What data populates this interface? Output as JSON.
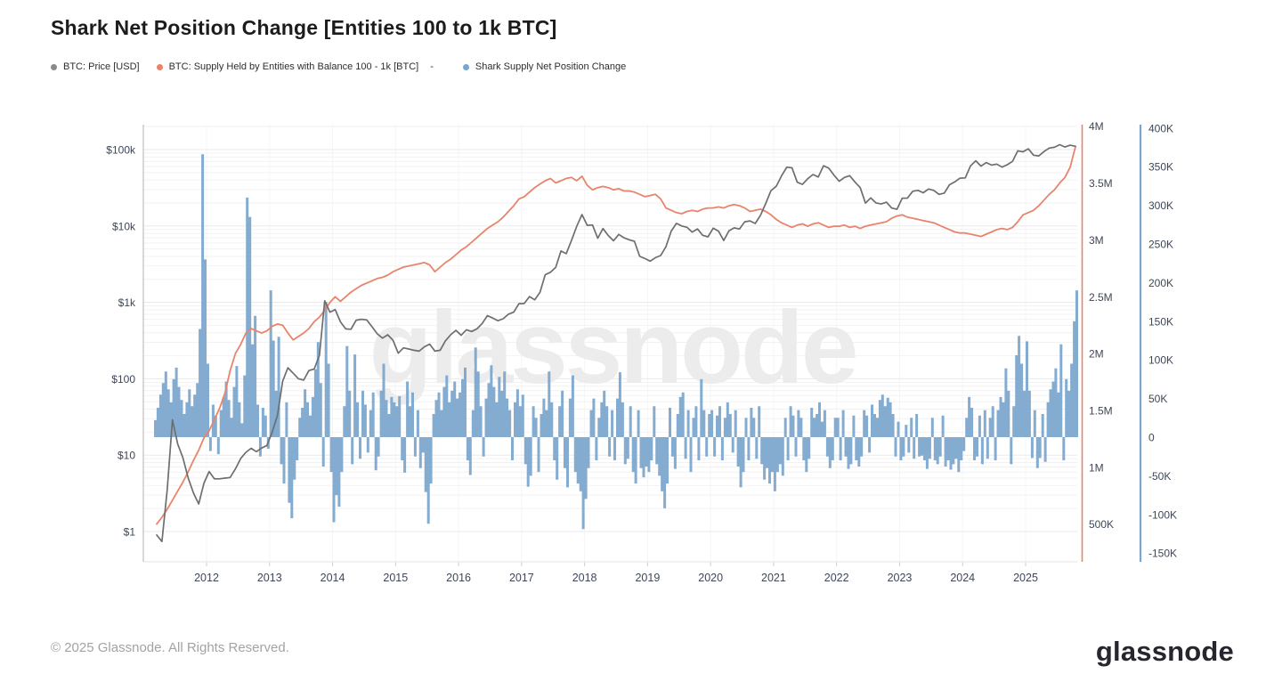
{
  "title": "Shark Net Position Change [Entities 100 to 1k BTC]",
  "legend": {
    "items": [
      {
        "label": "BTC: Price [USD]",
        "color": "#8a8a8a"
      },
      {
        "label": "BTC: Supply Held by Entities with Balance 100 - 1k [BTC]",
        "color": "#e8836b"
      },
      {
        "label": "Shark Supply Net Position Change",
        "color": "#7aa5cd"
      }
    ],
    "separator": "-"
  },
  "watermark": "glassnode",
  "footer": {
    "copyright": "© 2025 Glassnode. All Rights Reserved.",
    "logo_text": "glassnode"
  },
  "chart_data": {
    "type": "mixed",
    "title": "Shark Net Position Change [Entities 100 to 1k BTC]",
    "grid": "on",
    "x_axis": {
      "tick_labels": [
        "2012",
        "2013",
        "2014",
        "2015",
        "2016",
        "2017",
        "2018",
        "2019",
        "2020",
        "2021",
        "2022",
        "2023",
        "2024",
        "2025"
      ],
      "range": [
        2011.0,
        2025.85
      ]
    },
    "price_axis": {
      "side": "left",
      "scale": "log",
      "unit": "USD",
      "tick_labels": [
        "$100k",
        "$10k",
        "$1k",
        "$100",
        "$10",
        "$1"
      ],
      "tick_values": [
        100000,
        10000,
        1000,
        100,
        10,
        1
      ],
      "color": "#3d4757"
    },
    "supply_axis": {
      "side": "right",
      "scale": "linear",
      "unit": "BTC",
      "tick_labels": [
        "4M",
        "3.5M",
        "3M",
        "2.5M",
        "2M",
        "1.5M",
        "1M",
        "500K"
      ],
      "tick_values_m": [
        4,
        3.5,
        3,
        2.5,
        2,
        1.5,
        1,
        0.5
      ],
      "color": "#e8846c"
    },
    "npc_axis": {
      "side": "right-outer",
      "scale": "linear",
      "unit": "BTC",
      "tick_labels": [
        "400K",
        "350K",
        "300K",
        "250K",
        "200K",
        "150K",
        "100K",
        "50K",
        "0",
        "-50K",
        "-100K",
        "-150K"
      ],
      "tick_values_k": [
        400,
        350,
        300,
        250,
        200,
        150,
        100,
        50,
        0,
        -50,
        -100,
        -150
      ],
      "color": "#7aa5cd"
    },
    "series": [
      {
        "name": "BTC: Price [USD]",
        "type": "line",
        "axis": "price",
        "color": "#6e6e6e",
        "start": "2011-03",
        "interval": "monthly",
        "values": [
          0.9,
          0.74,
          3.5,
          29,
          14,
          9.2,
          5,
          3.2,
          2.3,
          4.3,
          6.1,
          4.9,
          4.9,
          5,
          5.1,
          6.6,
          9,
          10.9,
          12.3,
          11.1,
          12.4,
          13.4,
          20,
          33,
          93,
          139,
          118,
          100,
          96,
          128,
          134,
          202,
          1050,
          745,
          805,
          555,
          450,
          445,
          585,
          600,
          590,
          480,
          388,
          340,
          376,
          320,
          216,
          254,
          245,
          236,
          230,
          262,
          284,
          230,
          236,
          314,
          376,
          430,
          370,
          437,
          416,
          450,
          530,
          670,
          624,
          576,
          610,
          700,
          744,
          960,
          965,
          1190,
          1080,
          1350,
          2300,
          2480,
          2870,
          4700,
          4340,
          6450,
          9900,
          14100,
          10200,
          10300,
          6900,
          9240,
          7500,
          6400,
          7750,
          7000,
          6600,
          6300,
          4000,
          3740,
          3460,
          3850,
          4100,
          5350,
          8560,
          10800,
          10000,
          9600,
          8300,
          9150,
          7550,
          7200,
          9350,
          8550,
          6450,
          8650,
          9450,
          9140,
          11350,
          11650,
          10780,
          13800,
          19700,
          29000,
          33100,
          45200,
          58800,
          57750,
          37300,
          35000,
          41600,
          47150,
          43800,
          61300,
          57000,
          46200,
          38500,
          43200,
          45500,
          37650,
          31800,
          19950,
          23300,
          20050,
          19400,
          20500,
          17150,
          16550,
          23100,
          23150,
          28500,
          29250,
          27200,
          30450,
          29230,
          25950,
          26950,
          34650,
          37700,
          42250,
          42550,
          61150,
          71300,
          60650,
          67500,
          62700,
          64600,
          58950,
          63300,
          70200,
          96400,
          93400,
          102400,
          84350,
          82550,
          94200,
          104600,
          107100,
          115800,
          108200,
          114000,
          110500
        ]
      },
      {
        "name": "BTC: Supply Held by Entities with Balance 100 - 1k [BTC]",
        "type": "line",
        "axis": "supply",
        "unit": "million BTC",
        "color": "#e8846c",
        "start": "2011-03",
        "interval": "monthly",
        "values": [
          0.5,
          0.56,
          0.63,
          0.71,
          0.79,
          0.87,
          0.96,
          1.06,
          1.15,
          1.26,
          1.32,
          1.42,
          1.52,
          1.65,
          1.85,
          2.0,
          2.08,
          2.18,
          2.22,
          2.2,
          2.18,
          2.2,
          2.24,
          2.26,
          2.25,
          2.18,
          2.12,
          2.15,
          2.18,
          2.22,
          2.28,
          2.32,
          2.38,
          2.45,
          2.5,
          2.46,
          2.5,
          2.54,
          2.57,
          2.6,
          2.62,
          2.64,
          2.66,
          2.67,
          2.69,
          2.72,
          2.74,
          2.76,
          2.77,
          2.78,
          2.79,
          2.8,
          2.78,
          2.72,
          2.76,
          2.8,
          2.83,
          2.87,
          2.91,
          2.94,
          2.98,
          3.02,
          3.06,
          3.1,
          3.13,
          3.16,
          3.2,
          3.25,
          3.3,
          3.36,
          3.38,
          3.42,
          3.46,
          3.49,
          3.52,
          3.54,
          3.5,
          3.52,
          3.54,
          3.55,
          3.52,
          3.56,
          3.48,
          3.44,
          3.46,
          3.47,
          3.46,
          3.44,
          3.45,
          3.43,
          3.43,
          3.42,
          3.4,
          3.38,
          3.39,
          3.4,
          3.36,
          3.28,
          3.26,
          3.24,
          3.23,
          3.25,
          3.26,
          3.25,
          3.27,
          3.28,
          3.28,
          3.29,
          3.28,
          3.3,
          3.31,
          3.3,
          3.28,
          3.25,
          3.26,
          3.27,
          3.25,
          3.22,
          3.18,
          3.15,
          3.13,
          3.11,
          3.13,
          3.14,
          3.12,
          3.14,
          3.15,
          3.13,
          3.11,
          3.12,
          3.12,
          3.13,
          3.11,
          3.12,
          3.1,
          3.12,
          3.13,
          3.14,
          3.15,
          3.16,
          3.19,
          3.21,
          3.22,
          3.2,
          3.19,
          3.18,
          3.17,
          3.16,
          3.15,
          3.13,
          3.11,
          3.09,
          3.07,
          3.06,
          3.06,
          3.05,
          3.04,
          3.03,
          3.05,
          3.07,
          3.09,
          3.1,
          3.09,
          3.11,
          3.16,
          3.22,
          3.24,
          3.26,
          3.3,
          3.35,
          3.4,
          3.44,
          3.5,
          3.55,
          3.64,
          3.82
        ]
      },
      {
        "name": "Shark Supply Net Position Change",
        "type": "bar",
        "axis": "npc",
        "unit": "thousand BTC",
        "color": "#7aa5cd",
        "start": "2011-03",
        "interval": "semi-monthly",
        "values": [
          22,
          38,
          55,
          70,
          85,
          62,
          45,
          75,
          90,
          65,
          48,
          30,
          45,
          62,
          40,
          55,
          70,
          140,
          366,
          230,
          95,
          -18,
          42,
          28,
          -22,
          35,
          52,
          72,
          48,
          25,
          65,
          92,
          45,
          18,
          80,
          310,
          285,
          120,
          157,
          42,
          -25,
          38,
          28,
          -15,
          190,
          125,
          60,
          130,
          -35,
          -60,
          45,
          -85,
          -105,
          -55,
          -30,
          25,
          38,
          62,
          45,
          28,
          52,
          88,
          123,
          70,
          -38,
          175,
          95,
          -45,
          -110,
          -75,
          -90,
          -45,
          40,
          118,
          60,
          -35,
          107,
          45,
          -28,
          60,
          42,
          -20,
          35,
          58,
          -43,
          -25,
          60,
          95,
          48,
          30,
          52,
          45,
          40,
          53,
          -30,
          -46,
          72,
          40,
          58,
          -25,
          35,
          -40,
          -20,
          -71,
          -112,
          -60,
          30,
          48,
          58,
          35,
          65,
          80,
          45,
          60,
          72,
          50,
          58,
          75,
          90,
          -30,
          -49,
          35,
          116,
          85,
          40,
          -25,
          50,
          70,
          93,
          65,
          45,
          78,
          60,
          85,
          50,
          35,
          -30,
          45,
          62,
          40,
          55,
          -35,
          -64,
          -50,
          40,
          25,
          -45,
          30,
          50,
          35,
          85,
          45,
          -30,
          -55,
          40,
          60,
          -40,
          -65,
          50,
          80,
          -45,
          -60,
          -70,
          -119,
          -80,
          -40,
          35,
          50,
          -30,
          25,
          45,
          60,
          40,
          -25,
          35,
          -30,
          50,
          84,
          45,
          -35,
          -28,
          40,
          -45,
          -60,
          35,
          -40,
          -52,
          -38,
          -45,
          -30,
          40,
          -35,
          -50,
          -70,
          -92,
          -60,
          38,
          -25,
          -41,
          30,
          52,
          58,
          -28,
          35,
          -45,
          25,
          40,
          -30,
          75,
          35,
          -25,
          30,
          35,
          -25,
          28,
          40,
          -30,
          25,
          45,
          30,
          -20,
          35,
          -38,
          -65,
          -45,
          25,
          -30,
          38,
          25,
          -28,
          40,
          -35,
          -55,
          -40,
          -60,
          -45,
          -70,
          -45,
          -35,
          -50,
          25,
          -30,
          40,
          28,
          -25,
          35,
          25,
          -30,
          -45,
          -28,
          38,
          25,
          30,
          45,
          20,
          35,
          -25,
          -40,
          -30,
          25,
          25,
          -30,
          35,
          -25,
          -41,
          -35,
          28,
          -30,
          -38,
          -25,
          35,
          28,
          -20,
          42,
          30,
          25,
          48,
          55,
          40,
          51,
          45,
          30,
          -25,
          20,
          -30,
          -25,
          16,
          -20,
          25,
          -28,
          30,
          -25,
          -24,
          -30,
          -41,
          -28,
          25,
          -30,
          -35,
          -25,
          28,
          -38,
          -30,
          -42,
          -35,
          -28,
          -45,
          -30,
          -18,
          25,
          52,
          38,
          -30,
          -25,
          28,
          -35,
          35,
          -28,
          25,
          40,
          -30,
          35,
          52,
          45,
          89,
          60,
          -35,
          40,
          106,
          131,
          95,
          60,
          124,
          60,
          -27,
          35,
          -40,
          -27,
          30,
          -32,
          45,
          62,
          72,
          89,
          58,
          120,
          -30,
          75,
          60,
          95,
          150,
          190
        ]
      }
    ]
  }
}
